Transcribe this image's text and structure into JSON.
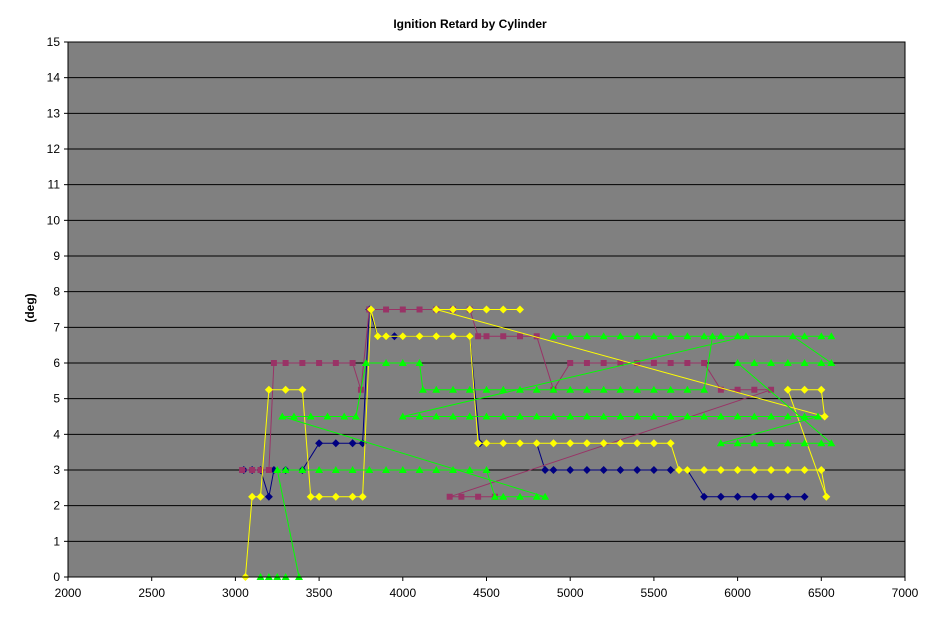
{
  "chart_data": {
    "type": "line",
    "title": "Ignition Retard by Cylinder",
    "xlabel": "",
    "ylabel": "(deg)",
    "xlim": [
      2000,
      7000
    ],
    "ylim": [
      0,
      15
    ],
    "x_ticks": [
      "2000",
      "2500",
      "3000",
      "3500",
      "4000",
      "4500",
      "5000",
      "5500",
      "6000",
      "6500",
      "7000"
    ],
    "y_ticks": [
      "0",
      "1",
      "2",
      "3",
      "4",
      "5",
      "6",
      "7",
      "8",
      "9",
      "10",
      "11",
      "12",
      "13",
      "14",
      "15"
    ],
    "grid": true,
    "legend": "none",
    "plot_background": "#808080",
    "series": [
      {
        "color": "#000080",
        "marker": "diamond",
        "points": [
          [
            3050,
            3
          ],
          [
            3100,
            3
          ],
          [
            3150,
            3
          ],
          [
            3200,
            2.25
          ],
          [
            3230,
            3
          ],
          [
            3300,
            3
          ],
          [
            3400,
            3
          ],
          [
            3500,
            3.75
          ],
          [
            3600,
            3.75
          ],
          [
            3700,
            3.75
          ],
          [
            3760,
            3.75
          ],
          [
            3800,
            7.5
          ],
          [
            3850,
            6.75
          ],
          [
            3900,
            6.75
          ],
          [
            3950,
            6.75
          ],
          [
            4000,
            6.75
          ],
          [
            4100,
            6.75
          ],
          [
            4200,
            6.75
          ],
          [
            4300,
            6.75
          ],
          [
            4400,
            6.75
          ],
          [
            4460,
            3.75
          ],
          [
            4500,
            3.75
          ],
          [
            4600,
            3.75
          ],
          [
            4700,
            3.75
          ],
          [
            4800,
            3.75
          ],
          [
            4850,
            3
          ],
          [
            4900,
            3
          ],
          [
            5000,
            3
          ],
          [
            5100,
            3
          ],
          [
            5200,
            3
          ],
          [
            5300,
            3
          ],
          [
            5400,
            3
          ],
          [
            5500,
            3
          ],
          [
            5600,
            3
          ],
          [
            5700,
            3
          ],
          [
            5800,
            2.25
          ],
          [
            5900,
            2.25
          ],
          [
            6000,
            2.25
          ],
          [
            6100,
            2.25
          ],
          [
            6200,
            2.25
          ],
          [
            6300,
            2.25
          ],
          [
            6400,
            2.25
          ]
        ]
      },
      {
        "color": "#993366",
        "marker": "square",
        "points": [
          [
            3040,
            3
          ],
          [
            3100,
            3
          ],
          [
            3150,
            3
          ],
          [
            3200,
            3
          ],
          [
            3230,
            6
          ],
          [
            3300,
            6
          ],
          [
            3400,
            6
          ],
          [
            3500,
            6
          ],
          [
            3600,
            6
          ],
          [
            3700,
            6
          ],
          [
            3750,
            5.25
          ],
          [
            3800,
            7.5
          ],
          [
            3900,
            7.5
          ],
          [
            4000,
            7.5
          ],
          [
            4100,
            7.5
          ],
          [
            4200,
            7.5
          ],
          [
            4300,
            7.5
          ],
          [
            4400,
            7.5
          ],
          [
            4450,
            6.75
          ],
          [
            4500,
            6.75
          ],
          [
            4600,
            6.75
          ],
          [
            4700,
            6.75
          ],
          [
            4800,
            6.75
          ],
          [
            4900,
            5.25
          ],
          [
            5000,
            6
          ],
          [
            5100,
            6
          ],
          [
            5200,
            6
          ],
          [
            5300,
            6
          ],
          [
            5400,
            6
          ],
          [
            5500,
            6
          ],
          [
            5600,
            6
          ],
          [
            5700,
            6
          ],
          [
            5800,
            6
          ],
          [
            5900,
            5.25
          ],
          [
            6000,
            5.25
          ],
          [
            6100,
            5.25
          ],
          [
            6200,
            5.25
          ],
          [
            4280,
            2.25
          ],
          [
            4350,
            2.25
          ],
          [
            4450,
            2.25
          ],
          [
            4550,
            2.25
          ]
        ]
      },
      {
        "color": "#FFFF00",
        "marker": "diamond",
        "points": [
          [
            3060,
            0
          ],
          [
            3100,
            2.25
          ],
          [
            3150,
            2.25
          ],
          [
            3200,
            5.25
          ],
          [
            3300,
            5.25
          ],
          [
            3400,
            5.25
          ],
          [
            3450,
            2.25
          ],
          [
            3500,
            2.25
          ],
          [
            3600,
            2.25
          ],
          [
            3700,
            2.25
          ],
          [
            3760,
            2.25
          ],
          [
            3810,
            7.5
          ],
          [
            3850,
            6.75
          ],
          [
            3900,
            6.75
          ],
          [
            4000,
            6.75
          ],
          [
            4100,
            6.75
          ],
          [
            4200,
            6.75
          ],
          [
            4300,
            6.75
          ],
          [
            4400,
            6.75
          ],
          [
            4450,
            3.75
          ],
          [
            4500,
            3.75
          ],
          [
            4600,
            3.75
          ],
          [
            4700,
            3.75
          ],
          [
            4800,
            3.75
          ],
          [
            4900,
            3.75
          ],
          [
            5000,
            3.75
          ],
          [
            5100,
            3.75
          ],
          [
            5200,
            3.75
          ],
          [
            5300,
            3.75
          ],
          [
            5400,
            3.75
          ],
          [
            5500,
            3.75
          ],
          [
            5600,
            3.75
          ],
          [
            5650,
            3
          ],
          [
            5700,
            3
          ],
          [
            5800,
            3
          ],
          [
            5900,
            3
          ],
          [
            6000,
            3
          ],
          [
            6100,
            3
          ],
          [
            6200,
            3
          ],
          [
            6300,
            3
          ],
          [
            6400,
            3
          ],
          [
            6500,
            3
          ],
          [
            6530,
            2.25
          ],
          [
            6300,
            5.25
          ],
          [
            6400,
            5.25
          ],
          [
            6500,
            5.25
          ],
          [
            6520,
            4.5
          ],
          [
            4200,
            7.5
          ],
          [
            4300,
            7.5
          ],
          [
            4400,
            7.5
          ],
          [
            4500,
            7.5
          ],
          [
            4600,
            7.5
          ],
          [
            4700,
            7.5
          ]
        ]
      },
      {
        "color": "#00FF00",
        "marker": "triangle",
        "points": [
          [
            3150,
            0
          ],
          [
            3200,
            0
          ],
          [
            3250,
            0
          ],
          [
            3300,
            0
          ],
          [
            3380,
            0
          ],
          [
            3250,
            3
          ],
          [
            3300,
            3
          ],
          [
            3400,
            3
          ],
          [
            3500,
            3
          ],
          [
            3600,
            3
          ],
          [
            3700,
            3
          ],
          [
            3800,
            3
          ],
          [
            3900,
            3
          ],
          [
            4000,
            3
          ],
          [
            4100,
            3
          ],
          [
            4200,
            3
          ],
          [
            4300,
            3
          ],
          [
            4400,
            3
          ],
          [
            4500,
            3
          ],
          [
            4550,
            2.25
          ],
          [
            4600,
            2.25
          ],
          [
            4700,
            2.25
          ],
          [
            4800,
            2.25
          ],
          [
            4850,
            2.25
          ],
          [
            3280,
            4.5
          ],
          [
            3350,
            4.5
          ],
          [
            3450,
            4.5
          ],
          [
            3550,
            4.5
          ],
          [
            3650,
            4.5
          ],
          [
            3720,
            4.5
          ],
          [
            3780,
            6
          ],
          [
            3900,
            6
          ],
          [
            4000,
            6
          ],
          [
            4100,
            6
          ],
          [
            4120,
            5.25
          ],
          [
            4200,
            5.25
          ],
          [
            4300,
            5.25
          ],
          [
            4400,
            5.25
          ],
          [
            4500,
            5.25
          ],
          [
            4600,
            5.25
          ],
          [
            4700,
            5.25
          ],
          [
            4800,
            5.25
          ],
          [
            4900,
            5.25
          ],
          [
            5000,
            5.25
          ],
          [
            5100,
            5.25
          ],
          [
            5200,
            5.25
          ],
          [
            5300,
            5.25
          ],
          [
            5400,
            5.25
          ],
          [
            5500,
            5.25
          ],
          [
            5600,
            5.25
          ],
          [
            5700,
            5.25
          ],
          [
            5800,
            5.25
          ],
          [
            5850,
            6.75
          ],
          [
            5900,
            6.75
          ],
          [
            6000,
            6.75
          ],
          [
            6050,
            6.75
          ],
          [
            4000,
            4.5
          ],
          [
            4100,
            4.5
          ],
          [
            4200,
            4.5
          ],
          [
            4300,
            4.5
          ],
          [
            4400,
            4.5
          ],
          [
            4500,
            4.5
          ],
          [
            4600,
            4.5
          ],
          [
            4700,
            4.5
          ],
          [
            4800,
            4.5
          ],
          [
            4900,
            4.5
          ],
          [
            5000,
            4.5
          ],
          [
            5100,
            4.5
          ],
          [
            5200,
            4.5
          ],
          [
            5300,
            4.5
          ],
          [
            5400,
            4.5
          ],
          [
            5500,
            4.5
          ],
          [
            5600,
            4.5
          ],
          [
            5700,
            4.5
          ],
          [
            5800,
            4.5
          ],
          [
            5900,
            4.5
          ],
          [
            6000,
            4.5
          ],
          [
            6100,
            4.5
          ],
          [
            6200,
            4.5
          ],
          [
            6300,
            4.5
          ],
          [
            6400,
            4.5
          ],
          [
            6480,
            4.5
          ],
          [
            5900,
            3.75
          ],
          [
            6000,
            3.75
          ],
          [
            6100,
            3.75
          ],
          [
            6200,
            3.75
          ],
          [
            6300,
            3.75
          ],
          [
            6400,
            3.75
          ],
          [
            6500,
            3.75
          ],
          [
            6560,
            3.75
          ],
          [
            6000,
            6
          ],
          [
            6100,
            6
          ],
          [
            6200,
            6
          ],
          [
            6300,
            6
          ],
          [
            6400,
            6
          ],
          [
            6500,
            6
          ],
          [
            6560,
            6
          ],
          [
            6330,
            6.75
          ],
          [
            6400,
            6.75
          ],
          [
            6500,
            6.75
          ],
          [
            6560,
            6.75
          ],
          [
            4900,
            6.75
          ],
          [
            5000,
            6.75
          ],
          [
            5100,
            6.75
          ],
          [
            5200,
            6.75
          ],
          [
            5300,
            6.75
          ],
          [
            5400,
            6.75
          ],
          [
            5500,
            6.75
          ],
          [
            5600,
            6.75
          ],
          [
            5700,
            6.75
          ],
          [
            5800,
            6.75
          ]
        ]
      }
    ]
  }
}
